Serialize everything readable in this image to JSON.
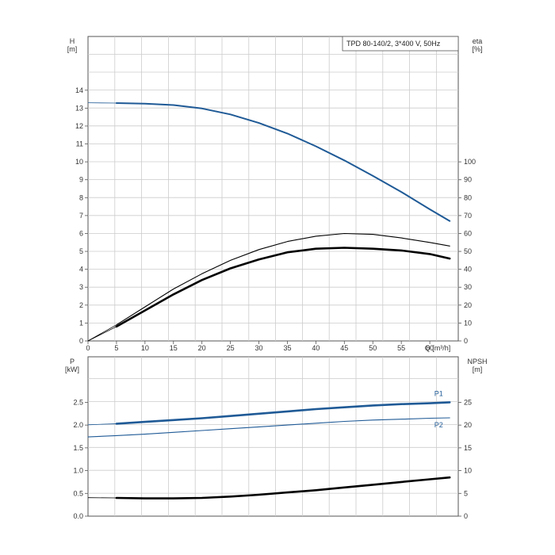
{
  "chart_data": [
    {
      "type": "line",
      "title": "TPD 80-140/2, 3*400 V, 50Hz",
      "xlabel": "Q [m³/h]",
      "xlim": [
        0,
        65
      ],
      "x_ticks": [
        0,
        5,
        10,
        15,
        20,
        25,
        30,
        35,
        40,
        45,
        50,
        55,
        60
      ],
      "y_left": {
        "label": "H",
        "unit": "[m]",
        "lim": [
          0,
          17
        ],
        "ticks": [
          0,
          1,
          2,
          3,
          4,
          5,
          6,
          7,
          8,
          9,
          10,
          11,
          12,
          13,
          14
        ]
      },
      "y_right": {
        "label": "eta",
        "unit": "[%]",
        "lim": [
          0,
          170
        ],
        "ticks": [
          0,
          10,
          20,
          30,
          40,
          50,
          60,
          70,
          80,
          90,
          100
        ]
      },
      "grid": true,
      "series": [
        {
          "axis": "left",
          "color": "#1f5a96",
          "extrapolation_to_zero": true,
          "x": [
            5,
            10,
            15,
            20,
            25,
            30,
            35,
            40,
            45,
            50,
            55,
            60,
            63.5
          ],
          "y": [
            13.28,
            13.25,
            13.17,
            12.98,
            12.65,
            12.17,
            11.58,
            10.87,
            10.08,
            9.22,
            8.32,
            7.35,
            6.7
          ]
        },
        {
          "axis": "right",
          "color": "#000000",
          "weight": "thin",
          "x": [
            5,
            10,
            15,
            20,
            25,
            30,
            35,
            40,
            45,
            50,
            55,
            60,
            63.5
          ],
          "y": [
            9,
            19,
            29,
            37.5,
            45,
            51,
            55.5,
            58.5,
            60,
            59.5,
            57.5,
            55,
            53
          ]
        },
        {
          "axis": "right",
          "color": "#000000",
          "weight": "bold",
          "x": [
            5,
            10,
            15,
            20,
            25,
            30,
            35,
            40,
            45,
            50,
            55,
            60,
            63.5
          ],
          "y": [
            8,
            17,
            26,
            34,
            40.5,
            45.5,
            49.5,
            51.5,
            52,
            51.5,
            50.5,
            48.5,
            46
          ]
        }
      ]
    },
    {
      "type": "line",
      "xlim": [
        0,
        65
      ],
      "y_left": {
        "label": "P",
        "unit": "[kW]",
        "lim": [
          0,
          3.5
        ],
        "ticks": [
          "0.0",
          "0.5",
          "1.0",
          "1.5",
          "2.0",
          "2.5"
        ]
      },
      "y_right": {
        "label": "NPSH",
        "unit": "[m]",
        "lim": [
          0,
          35
        ],
        "ticks": [
          0,
          5,
          10,
          15,
          20,
          25
        ]
      },
      "grid": true,
      "series": [
        {
          "name": "P1",
          "axis": "left",
          "color": "#1f5a96",
          "weight": "bold",
          "extrapolation_to_zero": true,
          "x": [
            5,
            10,
            15,
            20,
            25,
            30,
            35,
            40,
            45,
            50,
            55,
            60,
            63.5
          ],
          "y": [
            2.03,
            2.07,
            2.11,
            2.15,
            2.2,
            2.25,
            2.3,
            2.35,
            2.39,
            2.43,
            2.46,
            2.48,
            2.5
          ]
        },
        {
          "name": "P2",
          "axis": "left",
          "color": "#1f5a96",
          "weight": "thin",
          "extrapolation_to_zero": true,
          "x": [
            0,
            5,
            10,
            15,
            20,
            25,
            30,
            35,
            40,
            45,
            50,
            55,
            60,
            63.5
          ],
          "y": [
            1.74,
            1.77,
            1.8,
            1.84,
            1.88,
            1.92,
            1.96,
            2.0,
            2.04,
            2.08,
            2.11,
            2.13,
            2.15,
            2.16
          ]
        },
        {
          "axis": "right",
          "color": "#000000",
          "weight": "bold",
          "extrapolation_to_zero": true,
          "x": [
            5,
            10,
            15,
            20,
            25,
            30,
            35,
            40,
            45,
            50,
            55,
            60,
            63.5
          ],
          "y": [
            4.0,
            3.9,
            3.9,
            4.0,
            4.3,
            4.7,
            5.2,
            5.7,
            6.3,
            6.9,
            7.5,
            8.1,
            8.5
          ]
        }
      ]
    }
  ]
}
